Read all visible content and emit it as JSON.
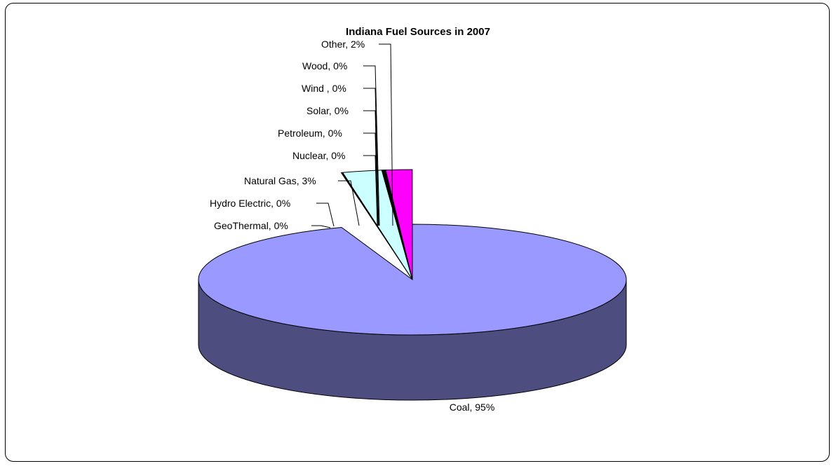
{
  "chart_data": {
    "type": "pie",
    "style": "3d-exploded",
    "title": "Indiana Fuel Sources in 2007",
    "slices": [
      {
        "category": "Coal",
        "value": 95,
        "label": "Coal, 95%",
        "color": "#9999FF",
        "side_color": "#4D4D80"
      },
      {
        "category": "GeoThermal",
        "value": 0,
        "label": "GeoThermal, 0%",
        "color": "#FFFFCC",
        "side_color": "#808066"
      },
      {
        "category": "Hydro Electric",
        "value": 0,
        "label": "Hydro Electric, 0%",
        "color": "#993366",
        "side_color": "#4D1A33"
      },
      {
        "category": "Natural Gas",
        "value": 3,
        "label": "Natural Gas, 3%",
        "color": "#CCFFFF",
        "side_color": "#668080"
      },
      {
        "category": "Nuclear",
        "value": 0,
        "label": "Nuclear, 0%",
        "color": "#660066",
        "side_color": "#330033"
      },
      {
        "category": "Petroleum",
        "value": 0,
        "label": "Petroleum, 0%",
        "color": "#FF8080",
        "side_color": "#804040"
      },
      {
        "category": "Solar",
        "value": 0,
        "label": "Solar, 0%",
        "color": "#0066CC",
        "side_color": "#003366"
      },
      {
        "category": "Wind ",
        "value": 0,
        "label": "Wind , 0%",
        "color": "#CCCCFF",
        "side_color": "#666680"
      },
      {
        "category": "Wood",
        "value": 0,
        "label": "Wood, 0%",
        "color": "#000080",
        "side_color": "#000040"
      },
      {
        "category": "Other",
        "value": 2,
        "label": "Other, 2%",
        "color": "#FF00FF",
        "side_color": "#800080"
      }
    ],
    "legend": "none",
    "data_labels": "category, percentage"
  }
}
